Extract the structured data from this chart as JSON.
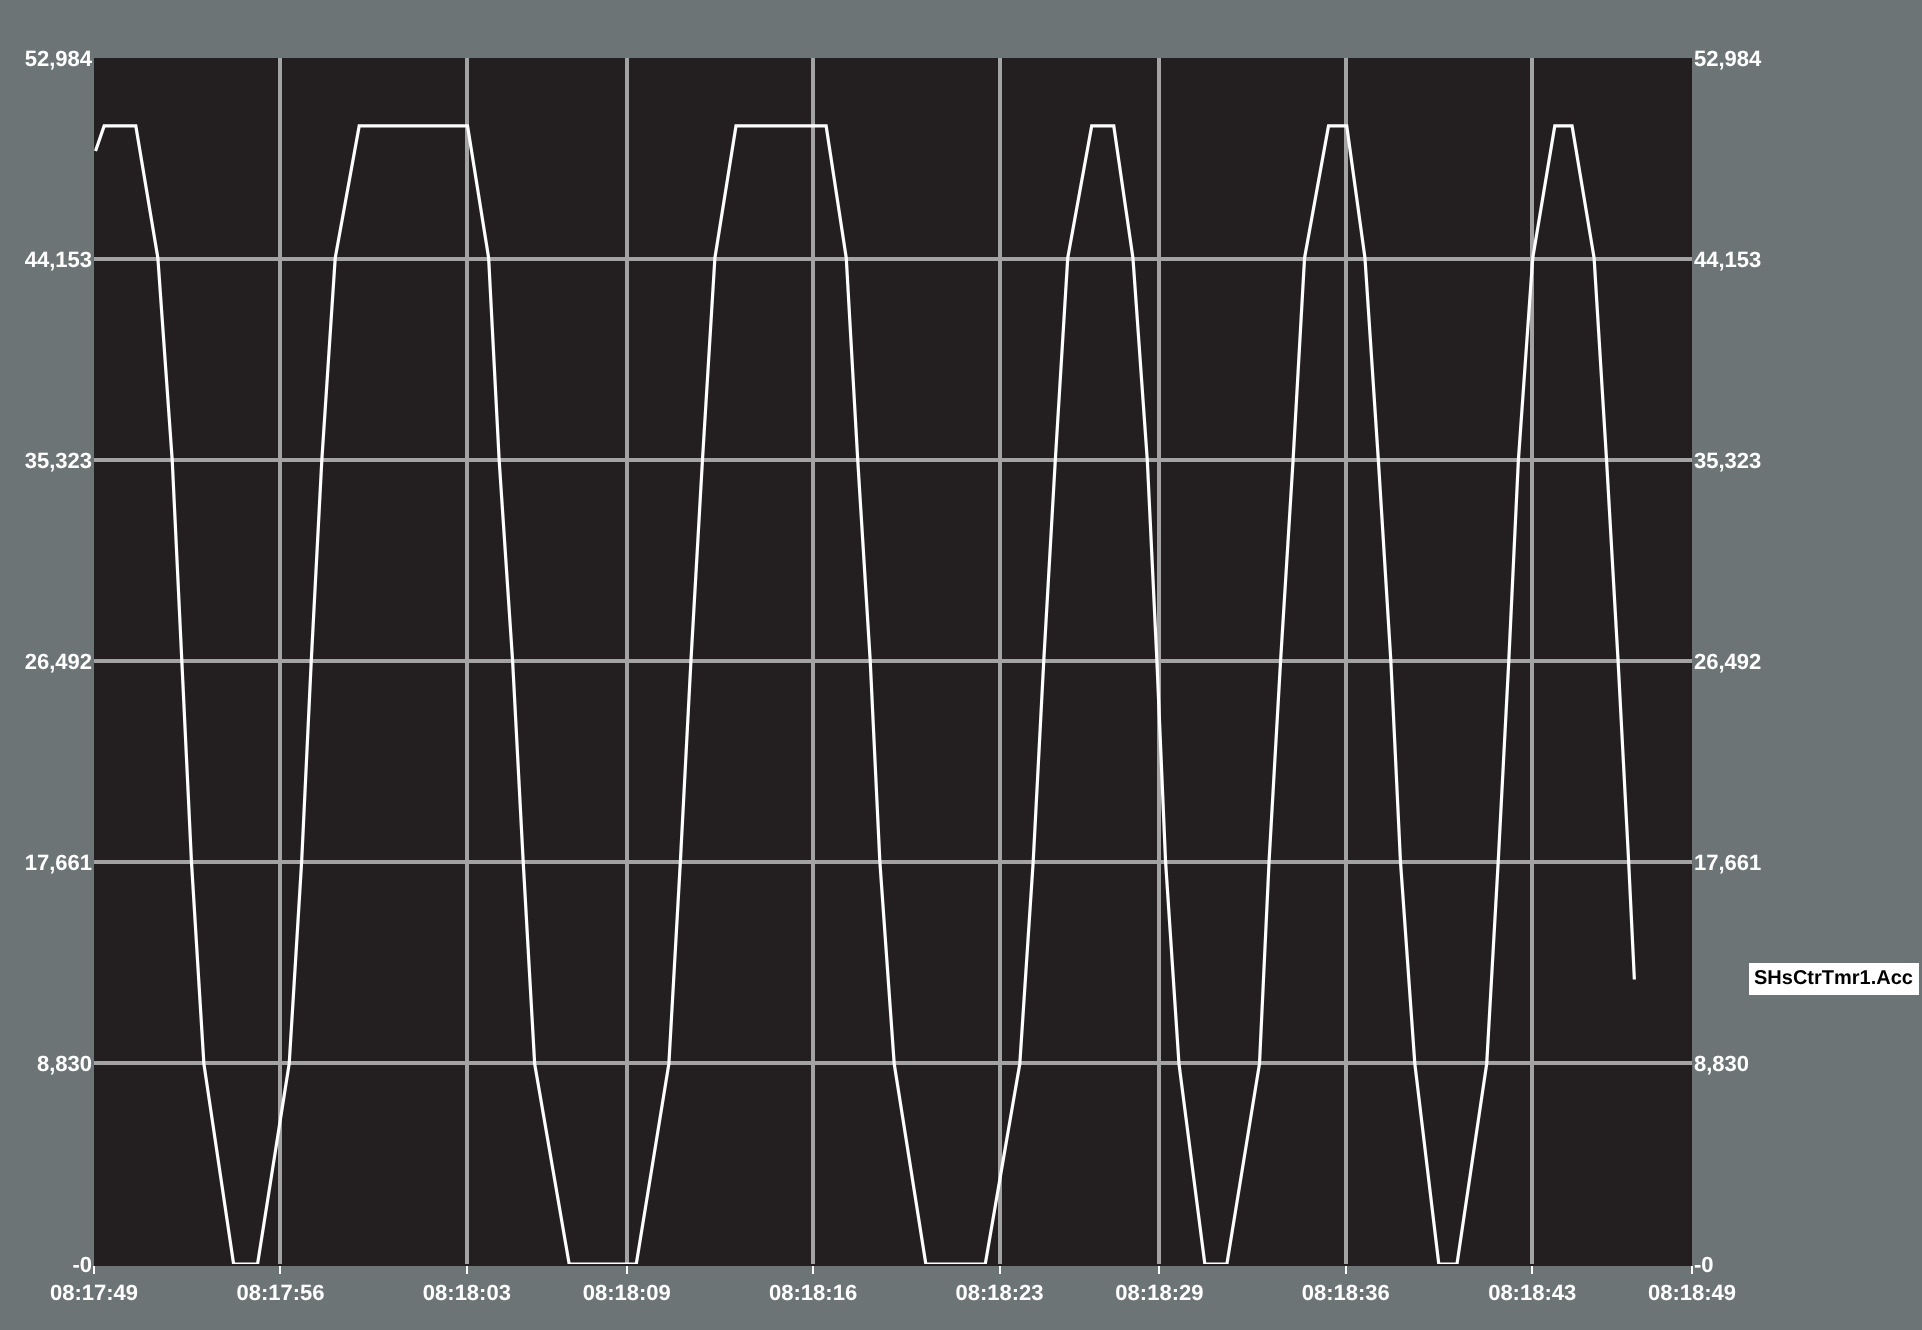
{
  "chart_data": {
    "type": "line",
    "series": [
      {
        "name": "SHsCtrTmr1.Acc",
        "color": "#ffffff",
        "x": [
          8.29696,
          8.29705,
          8.29738,
          8.29761,
          8.29776,
          8.29786,
          8.29796,
          8.29809,
          8.2984,
          8.29865,
          8.29898,
          8.29911,
          8.29921,
          8.29932,
          8.29946,
          8.29971,
          8.30084,
          8.30106,
          8.30117,
          8.30131,
          8.30142,
          8.30154,
          8.3019,
          8.3026,
          8.30294,
          8.30306,
          8.30317,
          8.30329,
          8.30342,
          8.30364,
          8.30458,
          8.30479,
          8.30491,
          8.30504,
          8.30514,
          8.30529,
          8.30562,
          8.30624,
          8.3066,
          8.30674,
          8.30685,
          8.30697,
          8.3071,
          8.30735,
          8.30758,
          8.30778,
          8.30793,
          8.30803,
          8.30812,
          8.30826,
          8.30853,
          8.30876,
          8.3091,
          8.3092,
          8.30932,
          8.30945,
          8.30957,
          8.30982,
          8.31001,
          8.3102,
          8.31034,
          8.31047,
          8.31057,
          8.31072,
          8.31097,
          8.31116,
          8.31147,
          8.31159,
          8.3117,
          8.3118,
          8.31195,
          8.31218,
          8.31236,
          8.31259,
          8.31272,
          8.31284,
          8.31295,
          8.31301
        ],
        "values": [
          48900,
          50000,
          50000,
          44200,
          35300,
          26500,
          17700,
          8800,
          0,
          0,
          8800,
          17700,
          26500,
          35300,
          44200,
          50000,
          50000,
          44200,
          35300,
          26500,
          17700,
          8800,
          0,
          0,
          8800,
          17700,
          26500,
          35300,
          44200,
          50000,
          50000,
          44200,
          35300,
          26500,
          17700,
          8800,
          0,
          0,
          8800,
          17700,
          26500,
          35300,
          44200,
          50000,
          50000,
          44200,
          35300,
          26500,
          17700,
          8800,
          0,
          0,
          8800,
          17700,
          26500,
          35300,
          44200,
          50000,
          50000,
          44200,
          35300,
          26500,
          17700,
          8800,
          0,
          0,
          8800,
          17700,
          26500,
          35300,
          44200,
          50000,
          50000,
          44200,
          35300,
          26500,
          17700,
          12500
        ]
      }
    ],
    "xlim": [
      8.296944,
      8.313611
    ],
    "xticks": [
      {
        "value": 8.296944,
        "label": "08:17:49"
      },
      {
        "value": 8.298889,
        "label": "08:17:56"
      },
      {
        "value": 8.300833,
        "label": "08:18:03"
      },
      {
        "value": 8.3025,
        "label": "08:18:09"
      },
      {
        "value": 8.304444,
        "label": "08:18:16"
      },
      {
        "value": 8.306389,
        "label": "08:18:23"
      },
      {
        "value": 8.308056,
        "label": "08:18:29"
      },
      {
        "value": 8.31,
        "label": "08:18:36"
      },
      {
        "value": 8.311944,
        "label": "08:18:43"
      },
      {
        "value": 8.313611,
        "label": "08:18:49"
      }
    ],
    "ylim": [
      0,
      52984
    ],
    "yticks": [
      {
        "value": 0,
        "label": "-0"
      },
      {
        "value": 8830,
        "label": "8,830"
      },
      {
        "value": 17661,
        "label": "17,661"
      },
      {
        "value": 26492,
        "label": "26,492"
      },
      {
        "value": 35323,
        "label": "35,323"
      },
      {
        "value": 44153,
        "label": "44,153"
      },
      {
        "value": 52984,
        "label": "52,984"
      }
    ],
    "y2lim": [
      0,
      52984
    ],
    "y2ticks": [
      {
        "value": 0,
        "label": "-0"
      },
      {
        "value": 8830,
        "label": "8,830"
      },
      {
        "value": 17661,
        "label": "17,661"
      },
      {
        "value": 26492,
        "label": "26,492"
      },
      {
        "value": 35323,
        "label": "35,323"
      },
      {
        "value": 44153,
        "label": "44,153"
      },
      {
        "value": 52984,
        "label": "52,984"
      }
    ],
    "grid": true,
    "legend": false
  }
}
